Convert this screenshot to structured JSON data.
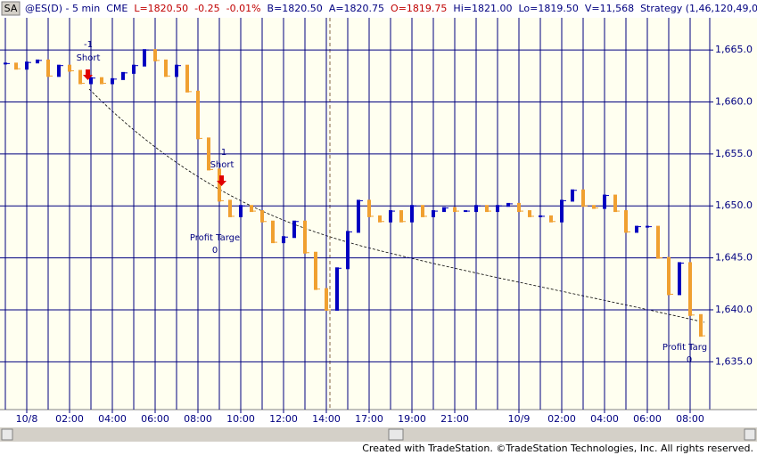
{
  "header": {
    "badge": "SA",
    "items": [
      {
        "text": "@ES(D) - 5 min",
        "color": "#000080"
      },
      {
        "text": "CME",
        "color": "#000080"
      },
      {
        "text": "L=1820.50",
        "color": "#c00000"
      },
      {
        "text": "-0.25",
        "color": "#c00000"
      },
      {
        "text": "-0.01%",
        "color": "#c00000"
      },
      {
        "text": "B=1820.50",
        "color": "#000080"
      },
      {
        "text": "A=1820.75",
        "color": "#000080"
      },
      {
        "text": "O=1819.75",
        "color": "#c00000"
      },
      {
        "text": "Hi=1821.00",
        "color": "#000080"
      },
      {
        "text": "Lo=1819.50",
        "color": "#000080"
      },
      {
        "text": "V=11,568",
        "color": "#000080"
      },
      {
        "text": "Strategy (1,46,120,49,0,50,65,17,(",
        "color": "#000080"
      }
    ]
  },
  "chart_data": {
    "type": "price_bar",
    "categories": [
      null,
      null,
      "10/8",
      null,
      null,
      null,
      "02:00",
      null,
      null,
      null,
      "04:00",
      null,
      null,
      null,
      "06:00",
      null,
      null,
      null,
      "08:00",
      null,
      null,
      null,
      "10:00",
      null,
      null,
      null,
      "12:00",
      null,
      null,
      null,
      "14:00",
      null,
      null,
      null,
      "17:00",
      null,
      null,
      null,
      "19:00",
      null,
      null,
      null,
      "21:00",
      null,
      null,
      null,
      null,
      null,
      "10/9",
      null,
      null,
      null,
      "02:00",
      null,
      null,
      null,
      "04:00",
      null,
      null,
      null,
      "06:00",
      null,
      null,
      null,
      "08:00",
      null
    ],
    "series": [
      {
        "name": "@ES(D)",
        "up_color": "#0000c0",
        "down_color": "#f0a030",
        "values": [
          1663.7,
          1663.2,
          1663.8,
          1664.0,
          1662.5,
          1663.5,
          1663.0,
          1661.8,
          1662.3,
          1661.8,
          1662.2,
          1662.8,
          1663.5,
          1665.0,
          1664.0,
          1662.5,
          1663.5,
          1661.0,
          1656.5,
          1653.5,
          1650.5,
          1649.0,
          1650.0,
          1649.5,
          1648.5,
          1646.5,
          1647.0,
          1648.5,
          1645.5,
          1642.0,
          1640.0,
          1644.0,
          1647.5,
          1650.5,
          1649.0,
          1648.5,
          1649.5,
          1648.5,
          1650.0,
          1649.0,
          1649.5,
          1649.8,
          1649.5,
          1649.5,
          1650.0,
          1649.5,
          1650.0,
          1650.2,
          1649.5,
          1649.0,
          1649.0,
          1648.5,
          1650.5,
          1651.5,
          1650.0,
          1649.8,
          1651.0,
          1649.5,
          1647.5,
          1648.0,
          1648.0,
          1645.0,
          1641.5,
          1644.5,
          1639.5,
          1637.5
        ]
      }
    ],
    "ylim": [
      1630.4,
      1668.1
    ],
    "yticks": [
      {
        "value": 1635,
        "label": "1,635.0"
      },
      {
        "value": 1640,
        "label": "1,640.0"
      },
      {
        "value": 1645,
        "label": "1,645.0"
      },
      {
        "value": 1650,
        "label": "1,650.0"
      },
      {
        "value": 1655,
        "label": "1,655.0"
      },
      {
        "value": 1660,
        "label": "1,660.0"
      },
      {
        "value": 1665,
        "label": "1,665.0"
      }
    ],
    "grid": true,
    "annotations": [
      {
        "text": "-1"
      },
      {
        "text": "Short"
      },
      {
        "text": "1"
      },
      {
        "text": "Short"
      },
      {
        "text": "Profit Targe"
      },
      {
        "text": "0"
      },
      {
        "text": "Profit Targ"
      },
      {
        "text": "0"
      }
    ]
  },
  "footer": "Created with TradeStation. ©TradeStation Technologies, Inc. All rights reserved."
}
